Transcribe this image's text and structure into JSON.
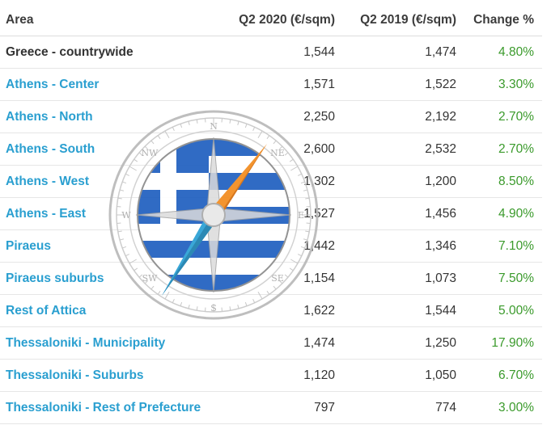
{
  "table": {
    "headers": {
      "area": "Area",
      "q2_2020": "Q2 2020 (€/sqm)",
      "q2_2019": "Q2 2019 (€/sqm)",
      "change": "Change %"
    },
    "rows": [
      {
        "area": "Greece - countrywide",
        "link": false,
        "q2_2020": "1,544",
        "q2_2019": "1,474",
        "change": "4.80%"
      },
      {
        "area": "Athens - Center",
        "link": true,
        "q2_2020": "1,571",
        "q2_2019": "1,522",
        "change": "3.30%"
      },
      {
        "area": "Athens - North",
        "link": true,
        "q2_2020": "2,250",
        "q2_2019": "2,192",
        "change": "2.70%"
      },
      {
        "area": "Athens - South",
        "link": true,
        "q2_2020": "2,600",
        "q2_2019": "2,532",
        "change": "2.70%"
      },
      {
        "area": "Athens - West",
        "link": true,
        "q2_2020": "1,302",
        "q2_2019": "1,200",
        "change": "8.50%"
      },
      {
        "area": "Athens - East",
        "link": true,
        "q2_2020": "1,527",
        "q2_2019": "1,456",
        "change": "4.90%"
      },
      {
        "area": "Piraeus",
        "link": true,
        "q2_2020": "1,442",
        "q2_2019": "1,346",
        "change": "7.10%"
      },
      {
        "area": "Piraeus suburbs",
        "link": true,
        "q2_2020": "1,154",
        "q2_2019": "1,073",
        "change": "7.50%"
      },
      {
        "area": "Rest of Attica",
        "link": true,
        "q2_2020": "1,622",
        "q2_2019": "1,544",
        "change": "5.00%"
      },
      {
        "area": "Thessaloniki - Municipality",
        "link": true,
        "q2_2020": "1,474",
        "q2_2019": "1,250",
        "change": "17.90%"
      },
      {
        "area": "Thessaloniki - Suburbs",
        "link": true,
        "q2_2020": "1,120",
        "q2_2019": "1,050",
        "change": "6.70%"
      },
      {
        "area": "Thessaloniki - Rest of Prefecture",
        "link": true,
        "q2_2020": "797",
        "q2_2019": "774",
        "change": "3.00%"
      }
    ]
  },
  "watermark": {
    "icon": "compass-greek-flag-icon",
    "compass_labels": [
      "N",
      "NE",
      "NW",
      "E",
      "W",
      "SW",
      "SE",
      "S"
    ],
    "colors": {
      "flag_blue": "#1f5fbf",
      "needle_orange": "#f28c1e",
      "needle_blue": "#2aa0d4"
    }
  },
  "colors": {
    "link": "#2a9fd0",
    "positive": "#3a9a2b",
    "text": "#333333"
  }
}
